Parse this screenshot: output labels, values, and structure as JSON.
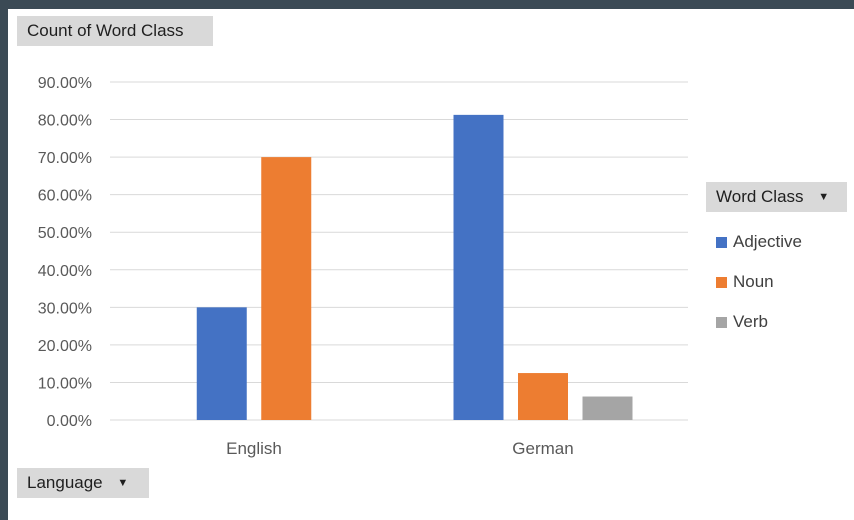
{
  "buttons": {
    "values_field": "Count of Word Class",
    "axis_field": "Language",
    "legend_field": "Word Class"
  },
  "colors": {
    "Adjective": "#4472c4",
    "Noun": "#ed7d31",
    "Verb": "#a5a5a5",
    "grid": "#d9d9d9"
  },
  "chart_data": {
    "type": "bar",
    "categories": [
      "English",
      "German"
    ],
    "series": [
      {
        "name": "Adjective",
        "values": [
          30.0,
          81.25
        ]
      },
      {
        "name": "Noun",
        "values": [
          70.0,
          12.5
        ]
      },
      {
        "name": "Verb",
        "values": [
          null,
          6.25
        ]
      }
    ],
    "ylim": [
      0,
      90
    ],
    "yticks": [
      "0.00%",
      "10.00%",
      "20.00%",
      "30.00%",
      "40.00%",
      "50.00%",
      "60.00%",
      "70.00%",
      "80.00%",
      "90.00%"
    ],
    "grid": true,
    "legend_position": "right"
  }
}
